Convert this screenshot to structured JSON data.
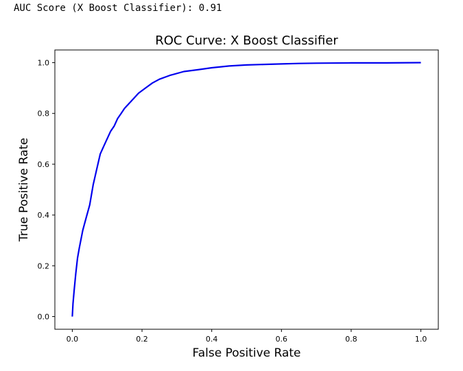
{
  "output": {
    "auc_text": "AUC Score (X Boost Classifier): 0.91"
  },
  "chart_data": {
    "type": "line",
    "title": "ROC Curve: X Boost Classifier",
    "xlabel": "False Positive Rate",
    "ylabel": "True Positive Rate",
    "xlim": [
      -0.05,
      1.05
    ],
    "ylim": [
      -0.05,
      1.05
    ],
    "xticks": [
      0.0,
      0.2,
      0.4,
      0.6,
      0.8,
      1.0
    ],
    "xtick_labels": [
      "0.0",
      "0.2",
      "0.4",
      "0.6",
      "0.8",
      "1.0"
    ],
    "yticks": [
      0.0,
      0.2,
      0.4,
      0.6,
      0.8,
      1.0
    ],
    "ytick_labels": [
      "0.0",
      "0.2",
      "0.4",
      "0.6",
      "0.8",
      "1.0"
    ],
    "grid": false,
    "line_color": "#0000ee",
    "series": [
      {
        "x": [
          0.0,
          0.002,
          0.005,
          0.01,
          0.015,
          0.02,
          0.03,
          0.04,
          0.05,
          0.06,
          0.07,
          0.08,
          0.09,
          0.1,
          0.11,
          0.12,
          0.13,
          0.14,
          0.15,
          0.17,
          0.19,
          0.21,
          0.23,
          0.25,
          0.28,
          0.32,
          0.36,
          0.4,
          0.45,
          0.5,
          0.55,
          0.6,
          0.65,
          0.7,
          0.8,
          0.9,
          1.0
        ],
        "y": [
          0.0,
          0.05,
          0.1,
          0.17,
          0.23,
          0.27,
          0.34,
          0.39,
          0.44,
          0.52,
          0.58,
          0.64,
          0.67,
          0.7,
          0.73,
          0.75,
          0.78,
          0.8,
          0.82,
          0.85,
          0.88,
          0.9,
          0.92,
          0.935,
          0.95,
          0.965,
          0.972,
          0.98,
          0.987,
          0.991,
          0.993,
          0.995,
          0.997,
          0.998,
          0.999,
          0.999,
          1.0
        ]
      }
    ]
  }
}
